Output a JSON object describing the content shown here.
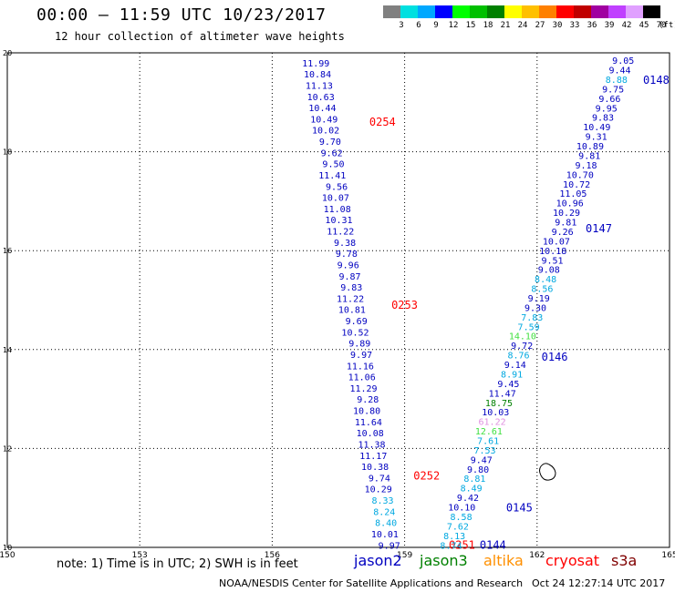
{
  "header": {
    "title": "00:00  –  11:59 UTC 10/23/2017",
    "subtitle": "12 hour collection of altimeter wave heights"
  },
  "colorbar": {
    "unit_label": "(ft)",
    "entries": [
      {
        "label": "3",
        "color": "#808080"
      },
      {
        "label": "6",
        "color": "#00e0e0"
      },
      {
        "label": "9",
        "color": "#00a8ff"
      },
      {
        "label": "12",
        "color": "#0000ff"
      },
      {
        "label": "15",
        "color": "#00ff00"
      },
      {
        "label": "18",
        "color": "#00c000"
      },
      {
        "label": "21",
        "color": "#008000"
      },
      {
        "label": "24",
        "color": "#ffff00"
      },
      {
        "label": "27",
        "color": "#ffc000"
      },
      {
        "label": "30",
        "color": "#ff8000"
      },
      {
        "label": "33",
        "color": "#ff0000"
      },
      {
        "label": "36",
        "color": "#c00000"
      },
      {
        "label": "39",
        "color": "#a000a0"
      },
      {
        "label": "42",
        "color": "#c040ff"
      },
      {
        "label": "45",
        "color": "#e0a0ff"
      },
      {
        "label": "70",
        "color": "#000000"
      }
    ]
  },
  "chart_data": {
    "type": "scatter",
    "xlim": [
      150,
      165
    ],
    "ylim": [
      10,
      20
    ],
    "x_ticks": [
      "150",
      "153",
      "156",
      "159",
      "162",
      "165"
    ],
    "y_ticks": [
      "10",
      "12",
      "14",
      "16",
      "18",
      "20"
    ],
    "grid": true,
    "tracks": [
      {
        "pass_time": "0251",
        "time_color": "#ff0000",
        "label_x": 160.0,
        "label_y": 10.05,
        "start": [
          158.9,
          10.05
        ],
        "end": [
          157.3,
          19.8
        ],
        "heights": [
          {
            "v": "9.97",
            "c": "#0000c0"
          },
          {
            "v": "10.01",
            "c": "#0000c0"
          },
          {
            "v": "8.40",
            "c": "#00a8e0"
          },
          {
            "v": "8.24",
            "c": "#00a8e0"
          },
          {
            "v": "8.33",
            "c": "#00a8e0"
          },
          {
            "v": "10.29",
            "c": "#0000c0"
          },
          {
            "v": "9.74",
            "c": "#0000c0"
          },
          {
            "v": "10.38",
            "c": "#0000c0"
          },
          {
            "v": "11.17",
            "c": "#0000c0"
          },
          {
            "v": "11.38",
            "c": "#0000c0"
          },
          {
            "v": "10.08",
            "c": "#0000c0"
          },
          {
            "v": "11.64",
            "c": "#0000c0"
          },
          {
            "v": "10.80",
            "c": "#0000c0"
          },
          {
            "v": "9.28",
            "c": "#0000c0"
          },
          {
            "v": "11.29",
            "c": "#0000c0"
          },
          {
            "v": "11.06",
            "c": "#0000c0"
          },
          {
            "v": "11.16",
            "c": "#0000c0"
          },
          {
            "v": "9.97",
            "c": "#0000c0"
          },
          {
            "v": "9.89",
            "c": "#0000c0"
          },
          {
            "v": "10.52",
            "c": "#0000c0"
          },
          {
            "v": "9.69",
            "c": "#0000c0"
          },
          {
            "v": "10.81",
            "c": "#0000c0"
          },
          {
            "v": "11.22",
            "c": "#0000c0"
          },
          {
            "v": "9.83",
            "c": "#0000c0"
          },
          {
            "v": "9.87",
            "c": "#0000c0"
          },
          {
            "v": "9.96",
            "c": "#0000c0"
          },
          {
            "v": "9.78",
            "c": "#0000c0"
          },
          {
            "v": "9.38",
            "c": "#0000c0"
          },
          {
            "v": "11.22",
            "c": "#0000c0"
          },
          {
            "v": "10.31",
            "c": "#0000c0"
          },
          {
            "v": "11.08",
            "c": "#0000c0"
          },
          {
            "v": "10.07",
            "c": "#0000c0"
          },
          {
            "v": "9.56",
            "c": "#0000c0"
          },
          {
            "v": "11.41",
            "c": "#0000c0"
          },
          {
            "v": "9.50",
            "c": "#0000c0"
          },
          {
            "v": "9.62",
            "c": "#0000c0"
          },
          {
            "v": "9.70",
            "c": "#0000c0"
          },
          {
            "v": "10.02",
            "c": "#0000c0"
          },
          {
            "v": "10.49",
            "c": "#0000c0"
          },
          {
            "v": "10.44",
            "c": "#0000c0"
          },
          {
            "v": "10.63",
            "c": "#0000c0"
          },
          {
            "v": "11.13",
            "c": "#0000c0"
          },
          {
            "v": "10.84",
            "c": "#0000c0"
          },
          {
            "v": "11.99",
            "c": "#0000c0"
          }
        ]
      },
      {
        "pass_time": "0252",
        "time_color": "#ff0000",
        "label_x": 159.2,
        "label_y": 11.45
      },
      {
        "pass_time": "0253",
        "time_color": "#ff0000",
        "label_x": 158.7,
        "label_y": 14.9
      },
      {
        "pass_time": "0254",
        "time_color": "#ff0000",
        "label_x": 158.2,
        "label_y": 18.6
      },
      {
        "pass_time": "0144",
        "time_color": "#0000c0",
        "label_x": 160.7,
        "label_y": 10.05,
        "start": [
          160.3,
          10.05
        ],
        "end": [
          164.2,
          19.85
        ],
        "heights": [
          {
            "v": "8.74",
            "c": "#00a8e0"
          },
          {
            "v": "8.13",
            "c": "#00a8e0"
          },
          {
            "v": "7.62",
            "c": "#00a8e0"
          },
          {
            "v": "8.58",
            "c": "#00a8e0"
          },
          {
            "v": "10.10",
            "c": "#0000c0"
          },
          {
            "v": "9.42",
            "c": "#0000c0"
          },
          {
            "v": "8.49",
            "c": "#00a8e0"
          },
          {
            "v": "8.81",
            "c": "#00a8e0"
          },
          {
            "v": "9.80",
            "c": "#0000c0"
          },
          {
            "v": "9.47",
            "c": "#0000c0"
          },
          {
            "v": "7.53",
            "c": "#00a8e0"
          },
          {
            "v": "7.61",
            "c": "#00a8e0"
          },
          {
            "v": "12.61",
            "c": "#40e040"
          },
          {
            "v": "61.22",
            "c": "#e090e0"
          },
          {
            "v": "10.03",
            "c": "#0000c0"
          },
          {
            "v": "18.75",
            "c": "#008000"
          },
          {
            "v": "11.47",
            "c": "#0000c0"
          },
          {
            "v": "9.45",
            "c": "#0000c0"
          },
          {
            "v": "8.91",
            "c": "#00a8e0"
          },
          {
            "v": "9.14",
            "c": "#0000c0"
          },
          {
            "v": "8.76",
            "c": "#00a8e0"
          },
          {
            "v": "9.72",
            "c": "#0000c0"
          },
          {
            "v": "14.10",
            "c": "#40e040"
          },
          {
            "v": "7.59",
            "c": "#00a8e0"
          },
          {
            "v": "7.83",
            "c": "#00a8e0"
          },
          {
            "v": "9.30",
            "c": "#0000c0"
          },
          {
            "v": "9.19",
            "c": "#0000c0"
          },
          {
            "v": "8.56",
            "c": "#00a8e0"
          },
          {
            "v": "8.48",
            "c": "#00a8e0"
          },
          {
            "v": "9.08",
            "c": "#0000c0"
          },
          {
            "v": "9.51",
            "c": "#0000c0"
          },
          {
            "v": "10.18",
            "c": "#0000c0"
          },
          {
            "v": "10.07",
            "c": "#0000c0"
          },
          {
            "v": "9.26",
            "c": "#0000c0"
          },
          {
            "v": "9.81",
            "c": "#0000c0"
          },
          {
            "v": "10.29",
            "c": "#0000c0"
          },
          {
            "v": "10.96",
            "c": "#0000c0"
          },
          {
            "v": "11.05",
            "c": "#0000c0"
          },
          {
            "v": "10.72",
            "c": "#0000c0"
          },
          {
            "v": "10.70",
            "c": "#0000c0"
          },
          {
            "v": "9.18",
            "c": "#0000c0"
          },
          {
            "v": "9.81",
            "c": "#0000c0"
          },
          {
            "v": "10.89",
            "c": "#0000c0"
          },
          {
            "v": "9.31",
            "c": "#0000c0"
          },
          {
            "v": "10.49",
            "c": "#0000c0"
          },
          {
            "v": "9.83",
            "c": "#0000c0"
          },
          {
            "v": "9.95",
            "c": "#0000c0"
          },
          {
            "v": "9.66",
            "c": "#0000c0"
          },
          {
            "v": "9.75",
            "c": "#0000c0"
          },
          {
            "v": "8.88",
            "c": "#00a8e0"
          },
          {
            "v": "9.44",
            "c": "#0000c0"
          },
          {
            "v": "9.05",
            "c": "#0000c0"
          }
        ]
      },
      {
        "pass_time": "0145",
        "time_color": "#0000c0",
        "label_x": 161.3,
        "label_y": 10.8
      },
      {
        "pass_time": "0146",
        "time_color": "#0000c0",
        "label_x": 162.1,
        "label_y": 13.85
      },
      {
        "pass_time": "0147",
        "time_color": "#0000c0",
        "label_x": 163.1,
        "label_y": 16.45
      },
      {
        "pass_time": "0148",
        "time_color": "#0000c0",
        "label_x": 164.4,
        "label_y": 19.45
      }
    ]
  },
  "footer": {
    "note": "note: 1) Time is in UTC; 2) SWH is in feet",
    "satellites": [
      {
        "name": "jason2",
        "color": "#0000c0"
      },
      {
        "name": "jason3",
        "color": "#008000"
      },
      {
        "name": "altika",
        "color": "#ff9000"
      },
      {
        "name": "cryosat",
        "color": "#ff0000"
      },
      {
        "name": "s3a",
        "color": "#800000"
      }
    ],
    "credit": "NOAA/NESDIS Center for Satellite Applications and Research",
    "generated": "Oct 24 12:27:14 UTC 2017"
  }
}
